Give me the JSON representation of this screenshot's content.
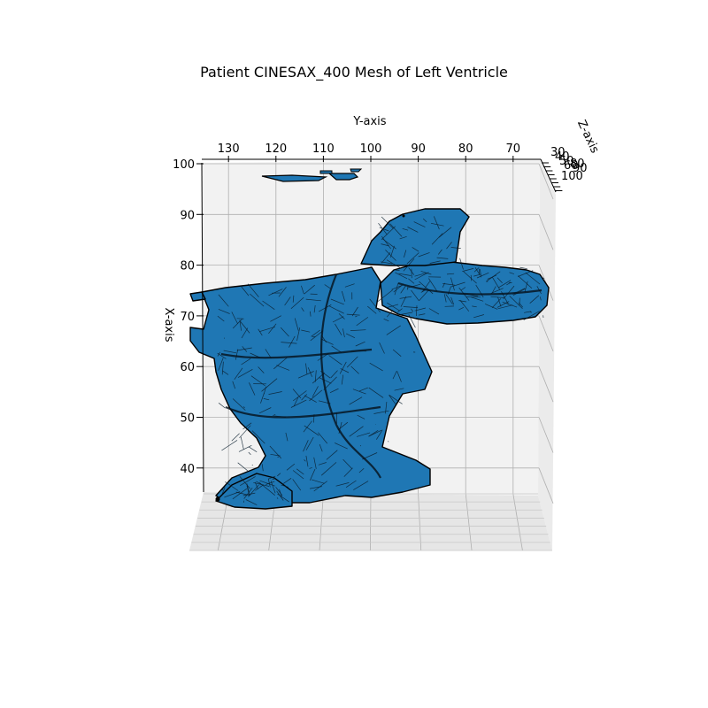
{
  "chart_data": {
    "type": "surface3d",
    "title": "Patient CINESAX_400 Mesh of Left Ventricle",
    "xlabel": "X-axis",
    "ylabel": "Y-axis",
    "zlabel": "Z-axis",
    "xlim": [
      34,
      100
    ],
    "ylim": [
      136,
      62
    ],
    "zlim": [
      30,
      100
    ],
    "x_ticks": [
      40,
      50,
      60,
      70,
      80,
      90,
      100
    ],
    "y_ticks": [
      130,
      120,
      110,
      100,
      90,
      80,
      70
    ],
    "z_ticks": [
      30,
      40,
      50,
      60,
      70,
      80,
      90,
      100
    ],
    "z_tick_labels_visible": [
      "30",
      "40",
      "50",
      "60",
      "80",
      "90",
      "100"
    ],
    "grid": true,
    "mesh_color": "#1f77b4",
    "edge_color": "#000000",
    "pane_color": "#f2f2f2"
  }
}
